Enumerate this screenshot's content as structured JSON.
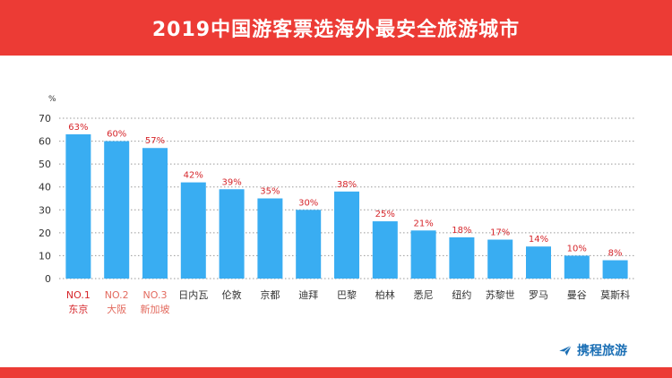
{
  "header": {
    "title": "2019中国游客票选海外最安全旅游城市"
  },
  "brand": {
    "logo_text": "携程旅游"
  },
  "colors": {
    "banner": "#ec3b35",
    "bar": "#39adf2",
    "value_label": "#d6262b",
    "top3_label": "#d6262b",
    "top_rank_label": "#e36b5f",
    "logo": "#1b6fb5"
  },
  "chart_data": {
    "type": "bar",
    "title": "2019中国游客票选海外最安全旅游城市",
    "ylabel": "%",
    "ylim": [
      0,
      70
    ],
    "yticks": [
      0,
      10,
      20,
      30,
      40,
      50,
      60,
      70
    ],
    "grid": "horizontal-dotted",
    "categories": [
      "东京",
      "大阪",
      "新加坡",
      "日内瓦",
      "伦敦",
      "京都",
      "迪拜",
      "巴黎",
      "柏林",
      "悉尼",
      "纽约",
      "苏黎世",
      "罗马",
      "曼谷",
      "莫斯科"
    ],
    "ranks": [
      "NO.1",
      "NO.2",
      "NO.3"
    ],
    "values": [
      63,
      60,
      57,
      42,
      39,
      35,
      30,
      38,
      25,
      21,
      18,
      17,
      14,
      10,
      8
    ],
    "value_labels": [
      "63%",
      "60%",
      "57%",
      "42%",
      "39%",
      "35%",
      "30%",
      "38%",
      "25%",
      "21%",
      "18%",
      "17%",
      "14%",
      "10%",
      "8%"
    ]
  }
}
